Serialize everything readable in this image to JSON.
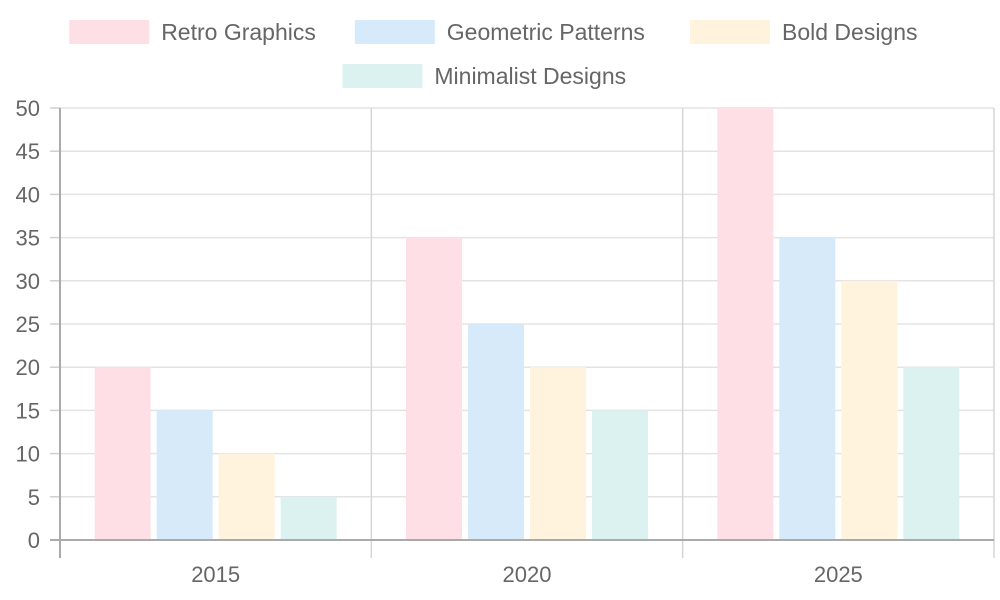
{
  "chart_data": {
    "type": "bar",
    "categories": [
      "2015",
      "2020",
      "2025"
    ],
    "series": [
      {
        "name": "Retro Graphics",
        "values": [
          20,
          35,
          50
        ],
        "color": "#ffdfe6"
      },
      {
        "name": "Geometric Patterns",
        "values": [
          15,
          25,
          35
        ],
        "color": "#d6eaf9"
      },
      {
        "name": "Bold Designs",
        "values": [
          10,
          20,
          30
        ],
        "color": "#fff3de"
      },
      {
        "name": "Minimalist Designs",
        "values": [
          5,
          15,
          20
        ],
        "color": "#dbf2f0"
      }
    ],
    "y_ticks": [
      "0",
      "5",
      "10",
      "15",
      "20",
      "25",
      "30",
      "35",
      "40",
      "45",
      "50"
    ],
    "ylim": [
      0,
      50
    ],
    "grid": true,
    "legend_position": "top-center"
  }
}
